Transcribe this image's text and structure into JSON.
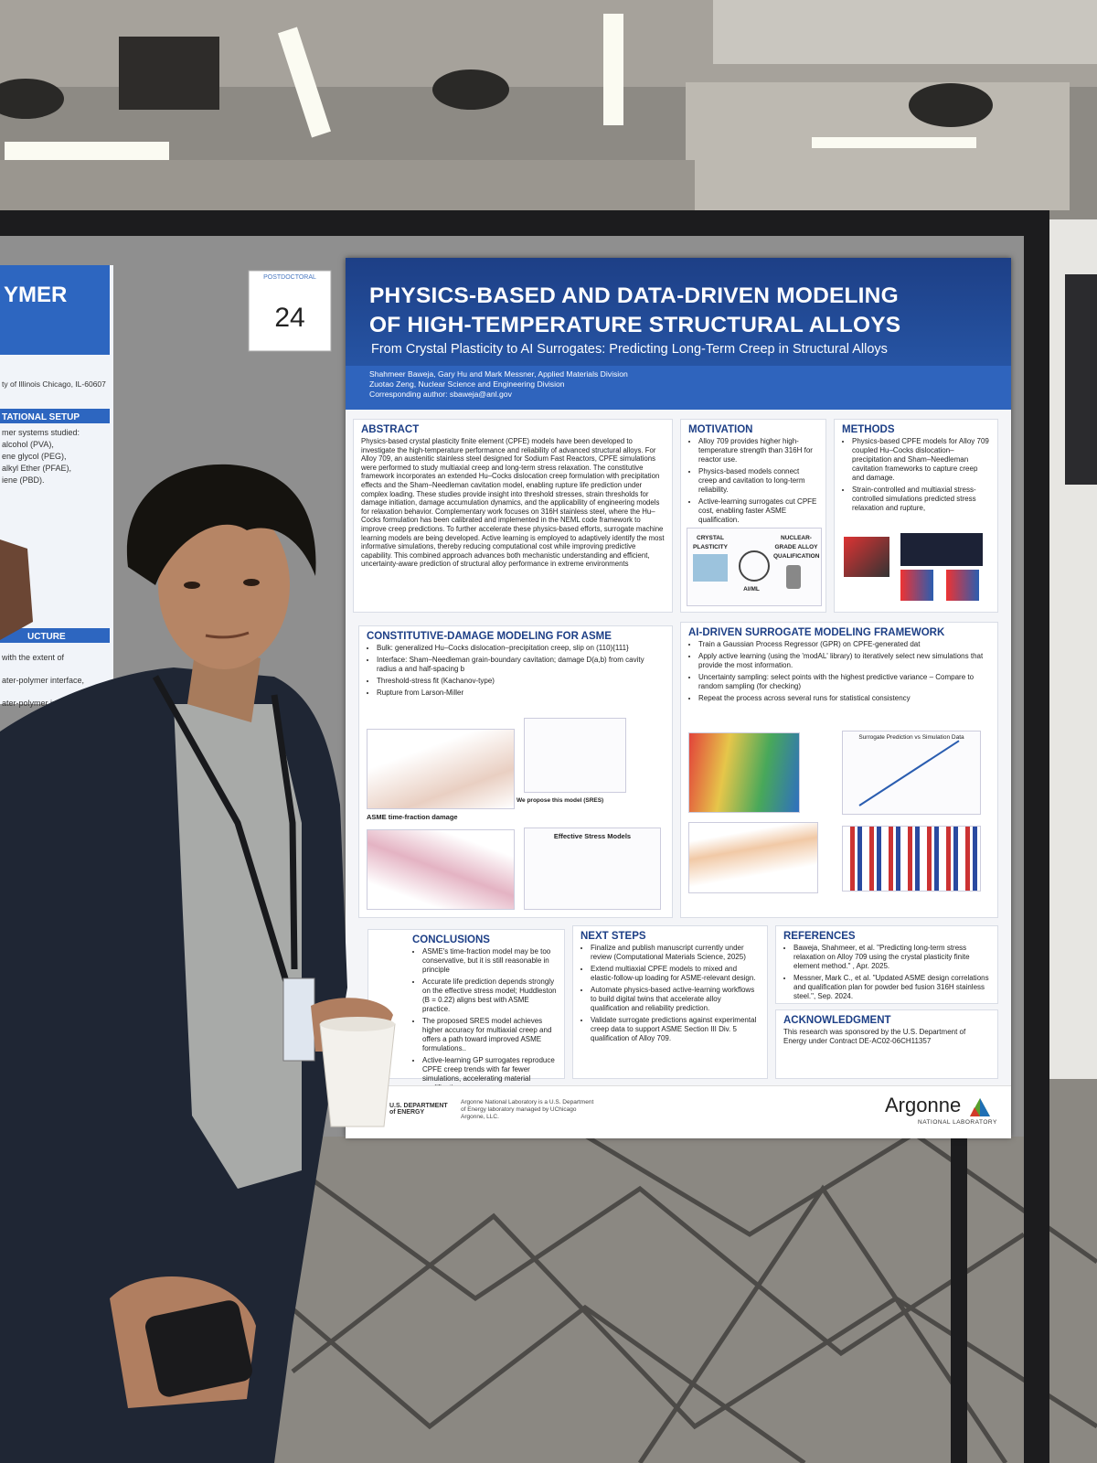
{
  "booth_number": "24",
  "board_tag": "POSTDOCTORAL",
  "neighbor_poster": {
    "title": "YMER",
    "affiliation": "ty of Illinois Chicago, IL-60607",
    "section_1": "TATIONAL SETUP",
    "items": [
      "mer systems studied:",
      "alcohol (PVA),",
      "ene glycol (PEG),",
      "alkyl Ether (PFAE),",
      "iene (PBD)."
    ],
    "section_2": "UCTURE",
    "lines": [
      "with the extent of",
      "ater-polymer interface,",
      "ater-polymer interfac"
    ]
  },
  "poster": {
    "title": [
      "PHYSICS-BASED AND DATA-DRIVEN MODELING",
      "OF HIGH-TEMPERATURE STRUCTURAL ALLOYS"
    ],
    "subtitle": "From Crystal Plasticity to AI Surrogates: Predicting Long-Term Creep in Structural Alloys",
    "authors": [
      "Shahmeer Baweja, Gary Hu and Mark Messner, Applied Materials Division",
      "Zuotao Zeng, Nuclear Science and Engineering Division",
      "Corresponding author: sbaweja@anl.gov"
    ],
    "abstract": {
      "heading": "ABSTRACT",
      "text": "Physics-based crystal plasticity finite element (CPFE) models have been developed to investigate the high-temperature performance and reliability of advanced structural alloys. For Alloy 709, an austenitic stainless steel designed for Sodium Fast Reactors, CPFE simulations were performed to study multiaxial creep and long-term stress relaxation. The constitutive framework incorporates an extended Hu–Cocks dislocation creep formulation with precipitation effects and the Sham–Needleman cavitation model, enabling rupture life prediction under complex loading. These studies provide insight into threshold stresses, strain thresholds for damage initiation, damage accumulation dynamics, and the applicability of engineering models for relaxation behavior. Complementary work focuses on 316H stainless steel, where the Hu–Cocks formulation has been calibrated and implemented in the NEML code framework to improve creep predictions. To further accelerate these physics-based efforts, surrogate machine learning models are being developed. Active learning is employed to adaptively identify the most informative simulations, thereby reducing computational cost while improving predictive capability. This combined approach advances both mechanistic understanding and efficient, uncertainty-aware prediction of structural alloy performance in extreme environments"
    },
    "motivation": {
      "heading": "MOTIVATION",
      "items": [
        "Alloy 709 provides higher high-temperature strength than 316H for reactor use.",
        "Physics-based models connect creep and cavitation to long-term reliability.",
        "Active-learning surrogates cut CPFE cost, enabling faster ASME qualification."
      ],
      "figure_labels": [
        "CRYSTAL PLASTICITY",
        "AI/ML",
        "NUCLEAR-GRADE ALLOY QUALIFICATION"
      ]
    },
    "methods": {
      "heading": "METHODS",
      "items": [
        "Physics-based CPFE models for Alloy 709 coupled Hu–Cocks dislocation–precipitation and Sham–Needleman cavitation frameworks to capture creep and damage.",
        "Strain-controlled and multiaxial stress-controlled simulations predicted stress relaxation and rupture,"
      ]
    },
    "constitutive": {
      "heading": "CONSTITUTIVE-DAMAGE MODELING FOR ASME",
      "items": [
        "Bulk: generalized Hu–Cocks dislocation–precipitation creep, slip on (110){111}",
        "Interface: Sham–Needleman grain-boundary cavitation; damage D(a,b) from cavity radius a and half-spacing b",
        "Threshold-stress fit (Kachanov-type)",
        "Rupture from Larson-Miller"
      ],
      "figure_labels": [
        "ASME time-fraction damage",
        "We propose this model (SRES)",
        "Effective Stress Models"
      ]
    },
    "surrogate": {
      "heading": "AI-DRIVEN SURROGATE MODELING FRAMEWORK",
      "items": [
        "Train a Gaussian Process Regressor (GPR) on CPFE-generated dat",
        "Apply active learning (using the 'modAL' library) to iteratively select new simulations that provide the most information.",
        "Uncertainty sampling: select points with the highest predictive variance – Compare to random sampling (for checking)",
        "Repeat the process across several runs for statistical consistency"
      ],
      "figure_labels": [
        "Surrogate Prediction vs Simulation Data"
      ]
    },
    "conclusions": {
      "heading": "CONCLUSIONS",
      "items": [
        "ASME's time-fraction model may be too conservative, but it is still reasonable in principle",
        "Accurate life prediction depends strongly on the effective stress model; Huddleston (B = 0.22) aligns best with ASME practice.",
        "The proposed SRES model achieves higher accuracy for multiaxial creep and offers a path toward improved ASME formulations..",
        "Active-learning GP surrogates reproduce CPFE creep trends with far fewer simulations, accelerating material qualification."
      ]
    },
    "next_steps": {
      "heading": "NEXT STEPS",
      "items": [
        "Finalize and publish manuscript currently under review (Computational Materials Science, 2025)",
        "Extend multiaxial CPFE models to mixed and elastic-follow-up loading for ASME-relevant design.",
        "Automate physics-based active-learning workflows to build digital twins that accelerate alloy qualification and reliability prediction.",
        "Validate surrogate predictions against experimental creep data to support ASME Section III Div. 5 qualification of Alloy 709."
      ]
    },
    "references": {
      "heading": "REFERENCES",
      "items": [
        "Baweja, Shahmeer, et al. \"Predicting long-term stress relaxation on Alloy 709 using the crystal plasticity finite element method.\" , Apr. 2025.",
        "Messner, Mark C., et al. \"Updated ASME design correlations and qualification plan for powder bed fusion 316H stainless steel.\", Sep. 2024."
      ]
    },
    "acknowledgment": {
      "heading": "ACKNOWLEDGMENT",
      "text": "This research was sponsored by the U.S. Department of Energy under Contract DE-AC02-06CH11357"
    },
    "footer": {
      "doe": "U.S. DEPARTMENT of ENERGY",
      "doe_note": "Argonne National Laboratory is a U.S. Department of Energy laboratory managed by UChicago Argonne, LLC.",
      "argonne": "Argonne",
      "argonne_sub": "NATIONAL LABORATORY"
    }
  }
}
